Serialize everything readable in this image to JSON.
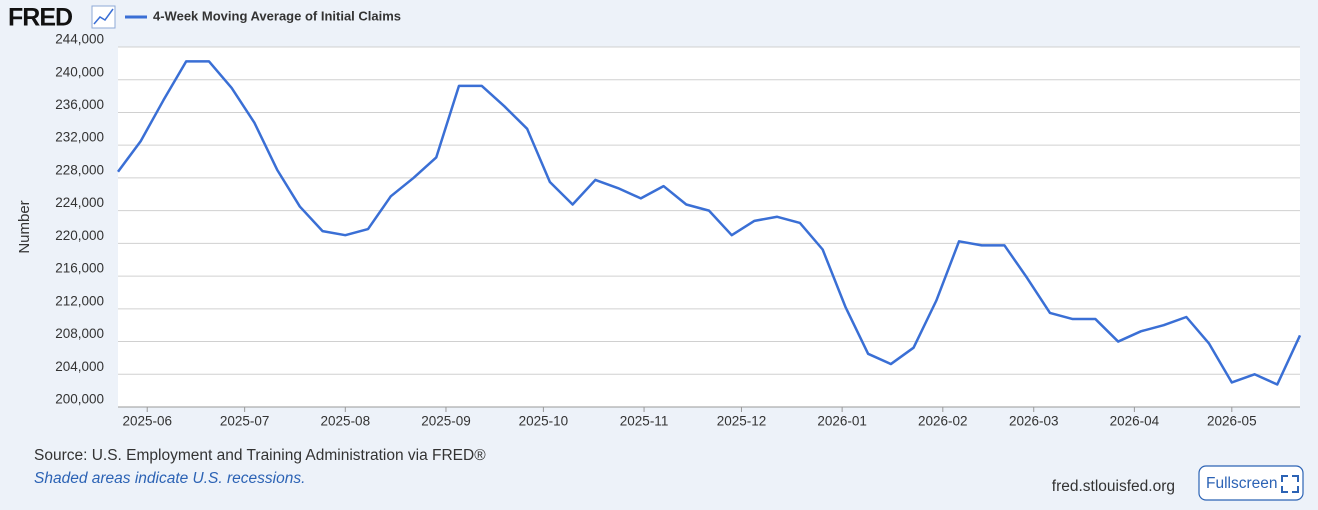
{
  "header": {
    "logo": "FRED"
  },
  "chart_data": {
    "type": "line",
    "legend": "top-left",
    "grid": true,
    "ylabel": "Number",
    "series": [
      {
        "name": "4-Week Moving Average of Initial Claims",
        "color": "#3a6fd5",
        "values": [
          228750,
          232500,
          237500,
          242250,
          242250,
          239000,
          234750,
          229000,
          224500,
          221500,
          221000,
          221750,
          225750,
          228000,
          230500,
          239250,
          239250,
          236750,
          234000,
          227500,
          224750,
          227750,
          226750,
          225500,
          227000,
          224750,
          224000,
          221000,
          222750,
          223250,
          222500,
          219250,
          212250,
          206500,
          205250,
          207250,
          213000,
          220250,
          219750,
          219750,
          215750,
          211500,
          210750,
          210750,
          208000,
          209250,
          210000,
          211000,
          207750,
          203000,
          204000,
          202750,
          208750
        ]
      }
    ],
    "xticks": [
      "2025-06",
      "2025-07",
      "2025-08",
      "2025-09",
      "2025-10",
      "2025-11",
      "2025-12",
      "2026-01",
      "2026-02",
      "2026-03",
      "2026-04",
      "2026-05"
    ],
    "ylim": [
      200000,
      244000
    ],
    "yticks": [
      {
        "value": 200000,
        "label": "200,000"
      },
      {
        "value": 204000,
        "label": "204,000"
      },
      {
        "value": 208000,
        "label": "208,000"
      },
      {
        "value": 212000,
        "label": "212,000"
      },
      {
        "value": 216000,
        "label": "216,000"
      },
      {
        "value": 220000,
        "label": "220,000"
      },
      {
        "value": 224000,
        "label": "224,000"
      },
      {
        "value": 228000,
        "label": "228,000"
      },
      {
        "value": 232000,
        "label": "232,000"
      },
      {
        "value": 236000,
        "label": "236,000"
      },
      {
        "value": 240000,
        "label": "240,000"
      },
      {
        "value": 244000,
        "label": "244,000"
      }
    ]
  },
  "footer": {
    "source": "Source: U.S. Employment and Training Administration via FRED®",
    "note": "Shaded areas indicate U.S. recessions.",
    "site": "fred.stlouisfed.org",
    "button": "Fullscreen"
  }
}
